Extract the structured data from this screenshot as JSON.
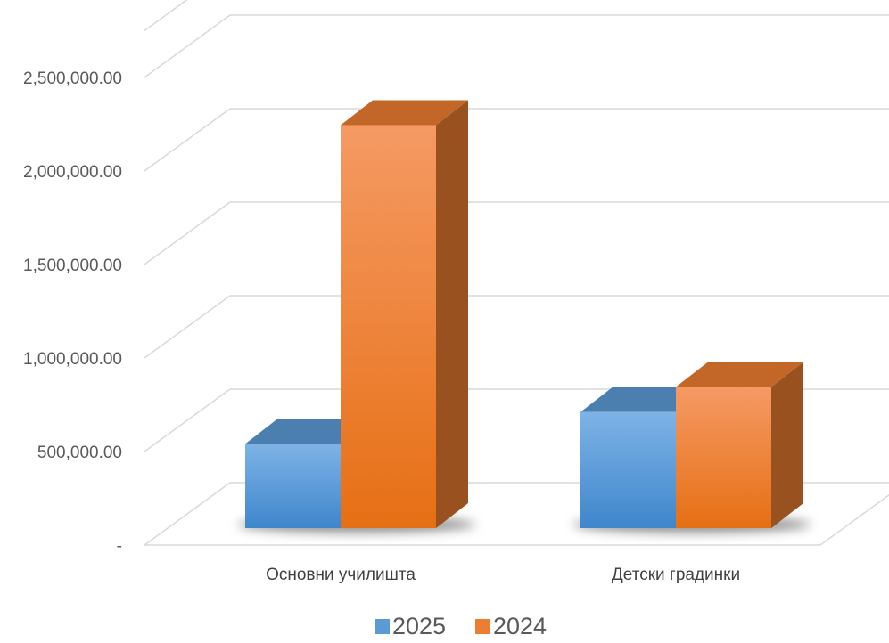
{
  "chart_data": {
    "type": "bar",
    "categories": [
      "Основни училишта",
      "Детски градинки"
    ],
    "series": [
      {
        "name": "2025",
        "values": [
          450000,
          620000
        ],
        "color": "#5B9BD5"
      },
      {
        "name": "2024",
        "values": [
          2155000,
          755000
        ],
        "color": "#ED7D31"
      }
    ],
    "ylim": [
      0,
      2500000
    ],
    "yticks": [
      {
        "value": 0,
        "label": "-"
      },
      {
        "value": 500000,
        "label": "500,000.00"
      },
      {
        "value": 1000000,
        "label": "1,000,000.00"
      },
      {
        "value": 1500000,
        "label": "1,500,000.00"
      },
      {
        "value": 2000000,
        "label": "2,000,000.00"
      },
      {
        "value": 2500000,
        "label": "2,500,000.00"
      }
    ],
    "grid": true,
    "legend_position": "bottom",
    "title": "",
    "xlabel": "",
    "ylabel": ""
  }
}
